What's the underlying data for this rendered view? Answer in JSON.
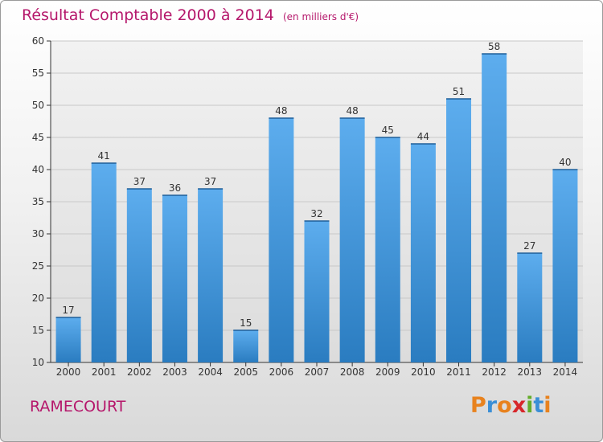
{
  "header": {
    "title": "Résultat Comptable 2000 à 2014",
    "subtitle": "(en milliers d'€)"
  },
  "footer": {
    "commune": "RAMECOURT",
    "logo_text": "Proxiti",
    "logo_colors": [
      "#e8821e",
      "#3b8fd6",
      "#e8821e",
      "#d7262a",
      "#64ad2b",
      "#3b8fd6",
      "#e8821e"
    ]
  },
  "colors": {
    "title": "#b5176b",
    "bar_light": "#5dadee",
    "bar_dark": "#2a7cc0",
    "grid": "#c8c8c8",
    "axis": "#333333",
    "plot_bg": "#e6e6e6"
  },
  "chart_data": {
    "type": "bar",
    "title": "Résultat Comptable 2000 à 2014",
    "categories": [
      "2000",
      "2001",
      "2002",
      "2003",
      "2004",
      "2005",
      "2006",
      "2007",
      "2008",
      "2009",
      "2010",
      "2011",
      "2012",
      "2013",
      "2014"
    ],
    "values": [
      17,
      41,
      37,
      36,
      37,
      15,
      48,
      32,
      48,
      45,
      44,
      51,
      58,
      27,
      40
    ],
    "ylim": [
      10,
      60
    ],
    "yticks": [
      10,
      15,
      20,
      25,
      30,
      35,
      40,
      45,
      50,
      55,
      60
    ],
    "grid": true,
    "xlabel": "",
    "ylabel": ""
  }
}
